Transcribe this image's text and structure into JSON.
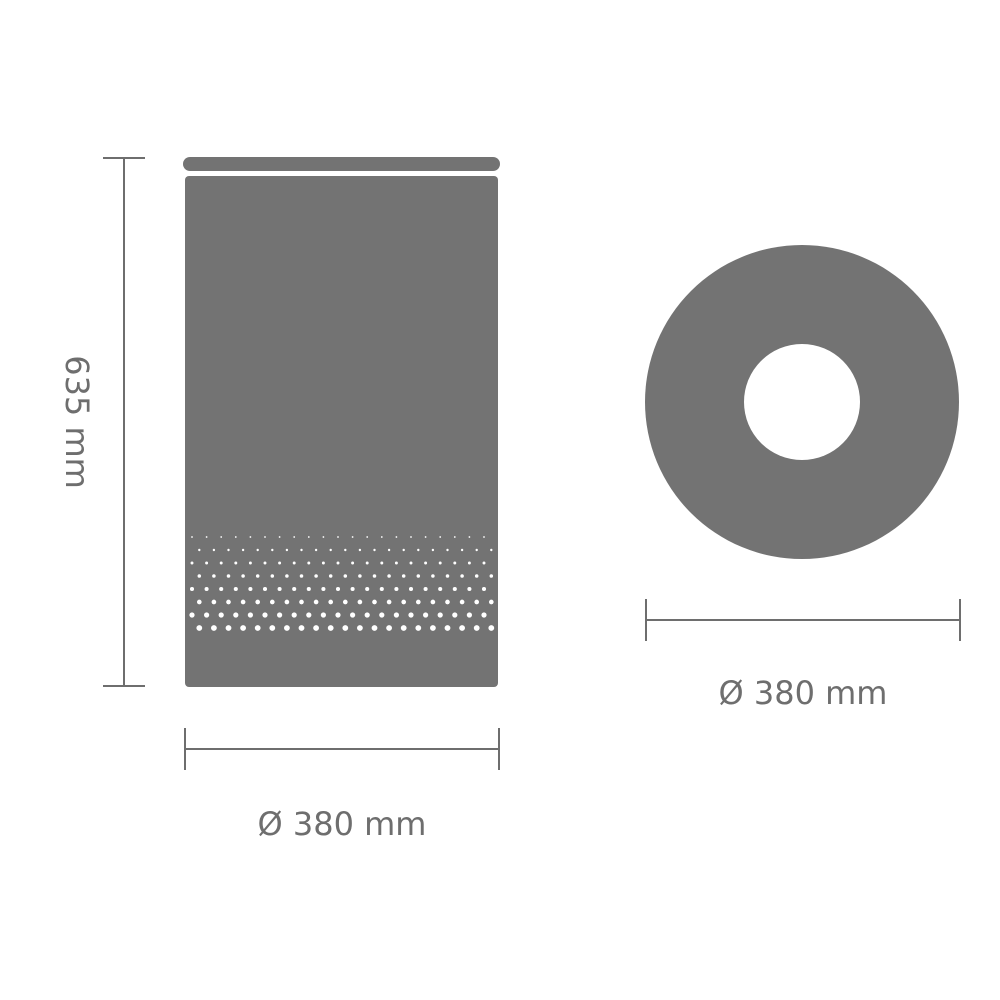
{
  "colors": {
    "product": "#737373",
    "dimension_line": "#6e6e6e",
    "label": "#6e6e6e",
    "background": "#ffffff"
  },
  "side_view": {
    "height_label": "635 mm",
    "width_label": "Ø 380 mm",
    "perforation_rows": 8
  },
  "top_view": {
    "diameter_label": "Ø 380 mm"
  }
}
